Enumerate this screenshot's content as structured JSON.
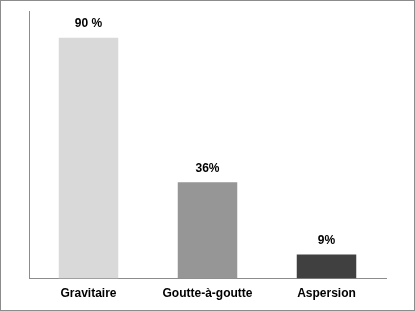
{
  "chart_data": {
    "type": "bar",
    "categories": [
      "Gravitaire",
      "Goutte-à-goutte",
      "Aspersion"
    ],
    "values": [
      90,
      36,
      9
    ],
    "value_labels": [
      "90 %",
      "36%",
      "9%"
    ],
    "colors": [
      "#d9d9d9",
      "#969696",
      "#404040"
    ],
    "ylim": [
      0,
      100
    ],
    "data_labels": true,
    "tick_labels": "x",
    "grid": false
  }
}
